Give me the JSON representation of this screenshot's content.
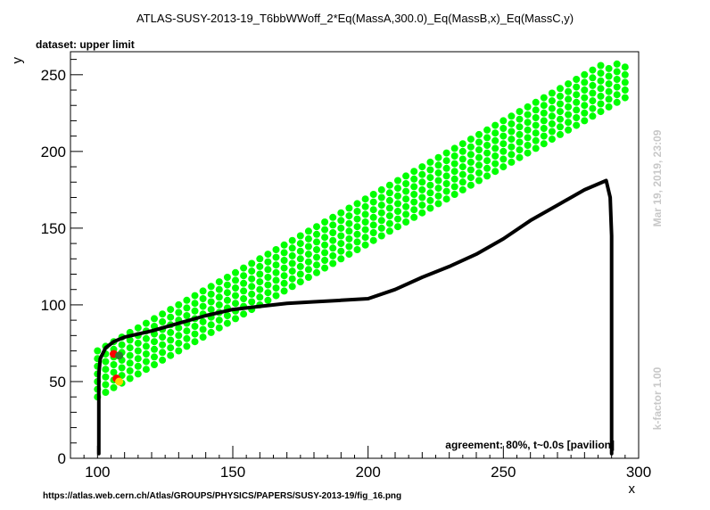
{
  "chart_data": {
    "type": "scatter",
    "title": "ATLAS-SUSY-2013-19_T6bbWWoff_2*Eq(MassA,300.0)_Eq(MassB,x)_Eq(MassC,y)",
    "subtitle": "dataset: upper limit",
    "xlabel": "x",
    "ylabel": "y",
    "xlim": [
      90,
      300
    ],
    "ylim": [
      0,
      265
    ],
    "xticks": [
      100,
      150,
      200,
      250,
      300
    ],
    "yticks": [
      0,
      50,
      100,
      150,
      200,
      250
    ],
    "grid": false,
    "agreement_label": "agreement: 80%, t~0.0s [pavilion]",
    "timestamp": "Mar 19, 2019, 23:09",
    "kfactor": "k-factor 1.00",
    "source_url": "https://atlas.web.cern.ch/Atlas/GROUPS/PHYSICS/PAPERS/SUSY-2013-19/fig_16.png",
    "colors": {
      "allowed": "#00ff00",
      "excluded": "#ff0000",
      "mixed": "#2e7d32",
      "contour": "#000000"
    },
    "green_band": {
      "x_min": 100,
      "x_max": 295,
      "dy_min": 30,
      "dy_max": 62,
      "x_step": 3,
      "y_step": 5
    },
    "special_points": [
      {
        "x": 106,
        "y": 68,
        "color": "#ff0000"
      },
      {
        "x": 108,
        "y": 67,
        "color": "#2e7d32"
      },
      {
        "x": 107,
        "y": 52,
        "color": "#ff0000"
      },
      {
        "x": 108,
        "y": 50,
        "color": "#ffd000"
      }
    ],
    "contour": [
      [
        100.5,
        3
      ],
      [
        100.5,
        30
      ],
      [
        100.5,
        55
      ],
      [
        101,
        65
      ],
      [
        103,
        72
      ],
      [
        106,
        76
      ],
      [
        110,
        79
      ],
      [
        120,
        83
      ],
      [
        130,
        88
      ],
      [
        140,
        93
      ],
      [
        150,
        97
      ],
      [
        160,
        99
      ],
      [
        170,
        101
      ],
      [
        180,
        102
      ],
      [
        190,
        103
      ],
      [
        200,
        104
      ],
      [
        210,
        110
      ],
      [
        220,
        118
      ],
      [
        230,
        125
      ],
      [
        240,
        133
      ],
      [
        250,
        143
      ],
      [
        260,
        155
      ],
      [
        270,
        165
      ],
      [
        280,
        175
      ],
      [
        288,
        181
      ],
      [
        289.5,
        170
      ],
      [
        290,
        145
      ],
      [
        290,
        100
      ],
      [
        290,
        50
      ],
      [
        290,
        3
      ]
    ]
  }
}
